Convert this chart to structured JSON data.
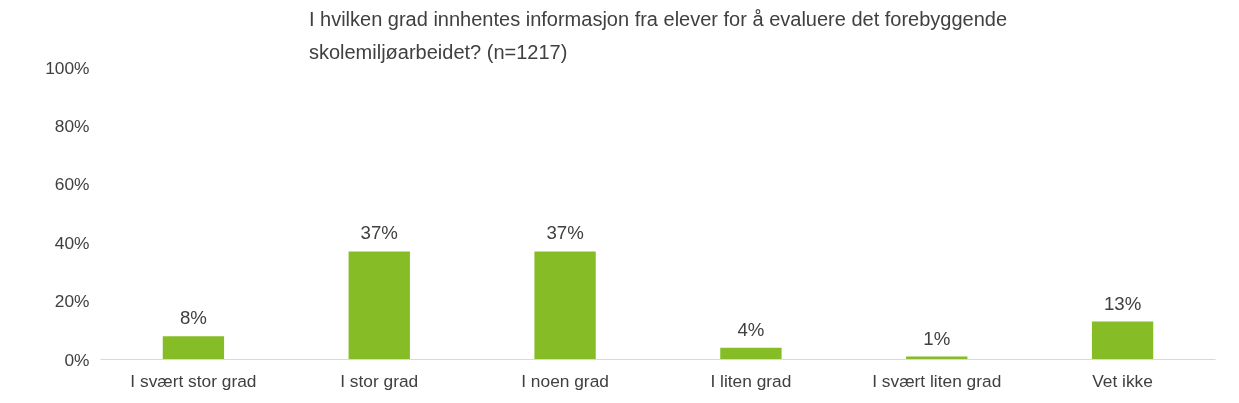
{
  "chart_data": {
    "type": "bar",
    "title": "I hvilken grad innhentes informasjon fra elever for å evaluere det forebyggende\nskolemiljøarbeidet? (n=1217)",
    "categories": [
      "I svært stor grad",
      "I stor grad",
      "I noen grad",
      "I liten grad",
      "I svært liten grad",
      "Vet ikke"
    ],
    "values": [
      8,
      37,
      37,
      4,
      1,
      13
    ],
    "value_labels": [
      "8%",
      "37%",
      "37%",
      "4%",
      "1%",
      "13%"
    ],
    "color": "#86bc25",
    "ylim": [
      0,
      100
    ],
    "yticks": [
      {
        "value": 0,
        "label": "0%"
      },
      {
        "value": 20,
        "label": "20%"
      },
      {
        "value": 40,
        "label": "40%"
      },
      {
        "value": 60,
        "label": "60%"
      },
      {
        "value": 80,
        "label": "80%"
      },
      {
        "value": 100,
        "label": "100%"
      }
    ],
    "grid": false
  }
}
